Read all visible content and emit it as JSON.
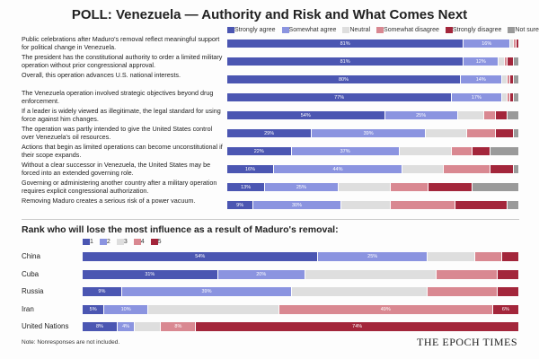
{
  "chart_data": [
    {
      "type": "bar",
      "orientation": "horizontal",
      "stacked": true,
      "title": "POLL: Venezuela — Authority and Risk and What Comes Next",
      "xlim": [
        0,
        100
      ],
      "categories": [
        "Public celebrations after Maduro's removal reflect meaningful support for political change in Venezuela.",
        "The president has the constitutional authority to order a limited military operation without prior congressional approval.",
        "Overall, this operation advances U.S. national interests.",
        "The Venezuela operation involved strategic objectives beyond drug enforcement.",
        "If a leader is widely viewed as illegitimate, the legal standard for using force against him changes.",
        "The operation was partly intended to give the United States control over Venezuela's oil resources.",
        "Actions that begin as limited operations can become unconstitutional if their scope expands.",
        "Without a clear successor in Venezuela, the United States may be forced into an extended governing role.",
        "Governing or administering another country after a military operation requires explicit congressional authorization.",
        "Removing Maduro creates a serious risk of a power vacuum."
      ],
      "series": [
        {
          "name": "Strongly agree",
          "color": "#4b56b2",
          "values": [
            81,
            81,
            80,
            77,
            54,
            29,
            22,
            16,
            13,
            9
          ],
          "value_labels": [
            "81%",
            "81%",
            "80%",
            "77%",
            "54%",
            "29%",
            "22%",
            "16%",
            "13%",
            "9%"
          ]
        },
        {
          "name": "Somewhat agree",
          "color": "#8b94e0",
          "values": [
            16,
            12,
            14,
            17,
            25,
            39,
            37,
            44,
            25,
            30
          ],
          "value_labels": [
            "16%",
            "12%",
            "14%",
            "17%",
            "25%",
            "39%",
            "37%",
            "44%",
            "25%",
            "30%"
          ]
        },
        {
          "name": "Neutral",
          "color": "#dedede",
          "values": [
            1,
            2,
            2,
            2,
            9,
            14,
            18,
            14,
            18,
            17
          ]
        },
        {
          "name": "Somewhat disagree",
          "color": "#d98891",
          "values": [
            1,
            1,
            1,
            1,
            4,
            10,
            7,
            16,
            13,
            22
          ]
        },
        {
          "name": "Strongly disagree",
          "color": "#a3263b",
          "values": [
            1,
            2,
            1,
            1,
            4,
            6,
            6,
            8,
            15,
            18
          ]
        },
        {
          "name": "Not sure",
          "color": "#9a9a9a",
          "values": [
            0,
            2,
            2,
            2,
            4,
            2,
            10,
            2,
            16,
            4
          ]
        }
      ]
    },
    {
      "type": "bar",
      "orientation": "horizontal",
      "stacked": true,
      "title": "Rank who will lose the most influence as a result of Maduro's removal:",
      "xlim": [
        0,
        100
      ],
      "categories": [
        "China",
        "Cuba",
        "Russia",
        "Iran",
        "United Nations"
      ],
      "series": [
        {
          "name": "1",
          "color": "#4b56b2",
          "values": [
            54,
            31,
            9,
            5,
            8
          ],
          "value_labels": [
            "54%",
            "31%",
            "9%",
            "5%",
            "8%"
          ]
        },
        {
          "name": "2",
          "color": "#8b94e0",
          "values": [
            25,
            20,
            39,
            10,
            4
          ],
          "value_labels": [
            "25%",
            "20%",
            "39%",
            "10%",
            "4%"
          ]
        },
        {
          "name": "3",
          "color": "#dedede",
          "values": [
            11,
            30,
            31,
            30,
            6
          ]
        },
        {
          "name": "4",
          "color": "#d98891",
          "values": [
            6,
            14,
            16,
            49,
            8
          ],
          "value_labels": [
            null,
            null,
            null,
            "49%",
            "8%"
          ]
        },
        {
          "name": "5",
          "color": "#a3263b",
          "values": [
            4,
            5,
            5,
            6,
            74
          ],
          "value_labels": [
            null,
            null,
            null,
            "6%",
            "74%"
          ]
        }
      ]
    }
  ],
  "note": "Note: Nonresponses are not included.",
  "brand": "THE EPOCH TIMES"
}
